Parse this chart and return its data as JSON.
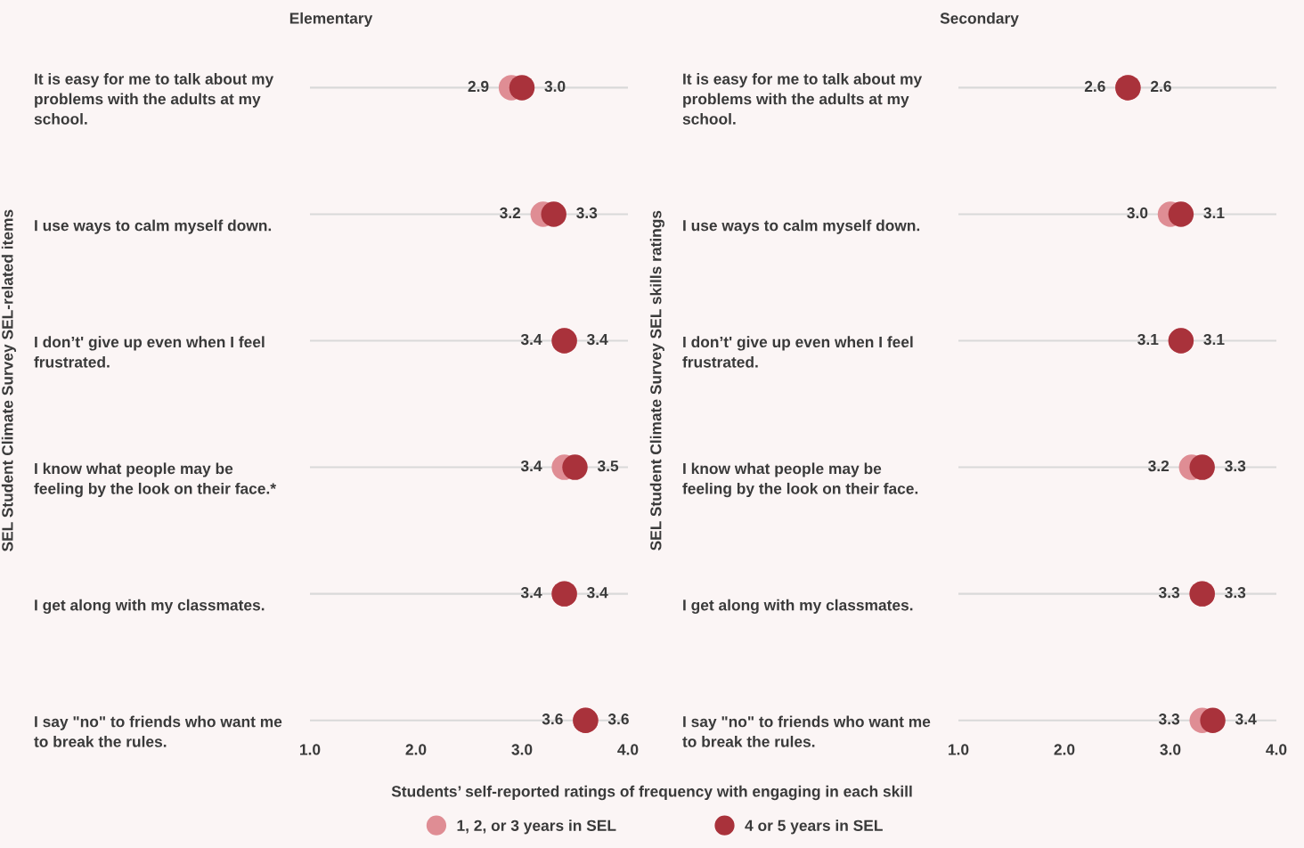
{
  "chart_data": [
    {
      "type": "scatter",
      "title": "Elementary",
      "ylabel": "SEL Student Climate Survey SEL-related items",
      "xlabel": "Students’ self-reported ratings of frequency with engaging in each skill",
      "categories": [
        "It is easy for me to talk about my problems with the adults at my school.",
        "I use ways to calm myself down.",
        "I don’t' give up even when I feel frustrated.",
        "I know what people may be feeling by the look on their face.*",
        "I get along with my classmates.",
        "I say \"no\" to friends who want me to break the rules."
      ],
      "orientation": "horizontal",
      "xlim": [
        1.0,
        4.0
      ],
      "xticks": [
        {
          "value": 1,
          "label": "1.0"
        },
        {
          "value": 2,
          "label": "2.0"
        },
        {
          "value": 3,
          "label": "3.0"
        },
        {
          "value": 4,
          "label": "4.0"
        }
      ],
      "series": [
        {
          "name": "1, 2, or 3 years in SEL",
          "color": "#df8d94",
          "values": [
            2.9,
            3.2,
            3.4,
            3.4,
            3.4,
            3.6
          ],
          "value_labels": [
            "2.9",
            "3.2",
            "3.4",
            "3.4",
            "3.4",
            "3.6"
          ]
        },
        {
          "name": "4 or 5 years in SEL",
          "color": "#a9323b",
          "values": [
            3.0,
            3.3,
            3.4,
            3.5,
            3.4,
            3.6
          ],
          "value_labels": [
            "3.0",
            "3.3",
            "3.4",
            "3.5",
            "3.4",
            "3.6"
          ]
        }
      ],
      "grid": "y",
      "marker": "circle",
      "legend": "bottom"
    },
    {
      "type": "scatter",
      "title": "Secondary",
      "ylabel": "SEL Student Climate Survey SEL skills ratings",
      "categories": [
        "It is easy for me to talk about my problems with the adults at my school.",
        "I use ways to calm myself down.",
        "I don’t' give up even when I feel frustrated.",
        "I know what people may be feeling by the look on their face.",
        "I get along with my classmates.",
        "I say \"no\" to friends who want me to break the rules."
      ],
      "orientation": "horizontal",
      "xlim": [
        1.0,
        4.0
      ],
      "xticks": [
        {
          "value": 1,
          "label": "1.0"
        },
        {
          "value": 2,
          "label": "2.0"
        },
        {
          "value": 3,
          "label": "3.0"
        },
        {
          "value": 4,
          "label": "4.0"
        }
      ],
      "series": [
        {
          "color": "#df8d94",
          "values": [
            2.6,
            3.0,
            3.1,
            3.2,
            3.3,
            3.3
          ],
          "value_labels": [
            "2.6",
            "3.0",
            "3.1",
            "3.2",
            "3.3",
            "3.3"
          ]
        },
        {
          "color": "#a9323b",
          "values": [
            2.6,
            3.1,
            3.1,
            3.3,
            3.3,
            3.4
          ],
          "value_labels": [
            "2.6",
            "3.1",
            "3.1",
            "3.3",
            "3.3",
            "3.4"
          ]
        }
      ],
      "grid": "y",
      "marker": "circle"
    }
  ]
}
